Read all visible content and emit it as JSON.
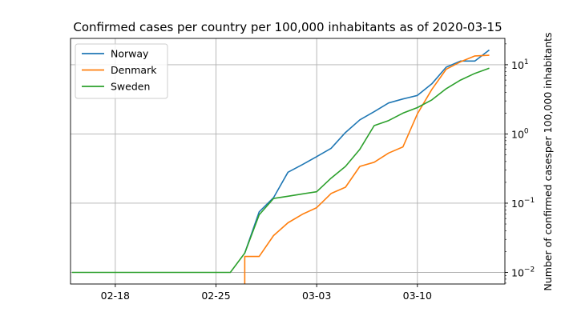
{
  "chart_data": {
    "type": "line",
    "title": "Confirmed cases per country per 100,000 inhabitants as of 2020-03-15",
    "xlabel": "",
    "ylabel": "Number of confirmed casesper 100,000 inhabitants",
    "y_scale": "log",
    "y_axis_side": "right",
    "x_ticks": [
      "02-18",
      "02-25",
      "03-03",
      "03-10"
    ],
    "y_ticks": [
      {
        "value": 0.01,
        "label_base": "10",
        "label_exp": "−2"
      },
      {
        "value": 0.1,
        "label_base": "10",
        "label_exp": "−1"
      },
      {
        "value": 1,
        "label_base": "10",
        "label_exp": "0"
      },
      {
        "value": 10,
        "label_base": "10",
        "label_exp": "1"
      }
    ],
    "grid": true,
    "legend_position": "top-left",
    "x_start": "2020-02-15",
    "xlim": [
      "2020-02-15",
      "2020-03-15"
    ],
    "ylim": [
      0.0068,
      24
    ],
    "x": [
      "2020-02-15",
      "2020-02-16",
      "2020-02-17",
      "2020-02-18",
      "2020-02-19",
      "2020-02-20",
      "2020-02-21",
      "2020-02-22",
      "2020-02-23",
      "2020-02-24",
      "2020-02-25",
      "2020-02-26",
      "2020-02-27",
      "2020-02-28",
      "2020-02-29",
      "2020-03-01",
      "2020-03-02",
      "2020-03-03",
      "2020-03-04",
      "2020-03-05",
      "2020-03-06",
      "2020-03-07",
      "2020-03-08",
      "2020-03-09",
      "2020-03-10",
      "2020-03-11",
      "2020-03-12",
      "2020-03-13",
      "2020-03-14",
      "2020-03-15"
    ],
    "series": [
      {
        "name": "Norway",
        "color": "#1f77b4",
        "values": [
          null,
          null,
          null,
          null,
          null,
          null,
          null,
          null,
          null,
          null,
          null,
          null,
          0.019,
          0.075,
          0.12,
          0.28,
          0.36,
          0.47,
          0.62,
          1.05,
          1.6,
          2.1,
          2.8,
          3.2,
          3.6,
          5.3,
          9.2,
          11.3,
          11.3,
          16.3
        ]
      },
      {
        "name": "Denmark",
        "color": "#ff7f0e",
        "values": [
          null,
          null,
          null,
          null,
          null,
          null,
          null,
          null,
          null,
          null,
          null,
          null,
          0.017,
          0.017,
          0.034,
          0.052,
          0.069,
          0.086,
          0.138,
          0.17,
          0.34,
          0.39,
          0.53,
          0.65,
          1.95,
          4.4,
          8.6,
          11.0,
          13.4,
          13.7
        ]
      },
      {
        "name": "Sweden",
        "color": "#2ca02c",
        "values": [
          0.01,
          0.01,
          0.01,
          0.01,
          0.01,
          0.01,
          0.01,
          0.01,
          0.01,
          0.01,
          0.01,
          0.01,
          0.019,
          0.068,
          0.117,
          0.126,
          0.136,
          0.146,
          0.23,
          0.34,
          0.6,
          1.32,
          1.56,
          2.0,
          2.4,
          3.1,
          4.5,
          6.0,
          7.5,
          8.9
        ]
      }
    ]
  }
}
